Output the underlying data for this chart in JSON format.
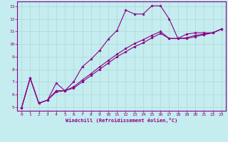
{
  "xlabel": "Windchill (Refroidissement éolien,°C)",
  "background_color": "#c5ecee",
  "grid_color": "#aad8da",
  "line_color": "#880088",
  "spine_color": "#880088",
  "xlim": [
    -0.5,
    23.5
  ],
  "ylim": [
    4.7,
    13.4
  ],
  "yticks": [
    5,
    6,
    7,
    8,
    9,
    10,
    11,
    12,
    13
  ],
  "xticks": [
    0,
    1,
    2,
    3,
    4,
    5,
    6,
    7,
    8,
    9,
    10,
    11,
    12,
    13,
    14,
    15,
    16,
    17,
    18,
    19,
    20,
    21,
    22,
    23
  ],
  "series1_x": [
    0,
    1,
    2,
    3,
    4,
    5,
    6,
    7,
    8,
    9,
    10,
    11,
    12,
    13,
    14,
    15,
    16,
    17,
    18,
    19,
    20,
    21,
    22,
    23
  ],
  "series1_y": [
    4.9,
    7.3,
    5.3,
    5.55,
    6.9,
    6.3,
    7.0,
    8.2,
    8.8,
    9.5,
    10.4,
    11.1,
    12.7,
    12.4,
    12.4,
    13.05,
    13.05,
    12.0,
    10.45,
    10.8,
    10.9,
    10.9,
    10.9,
    11.2
  ],
  "series2_x": [
    0,
    1,
    2,
    3,
    4,
    5,
    6,
    7,
    8,
    9,
    10,
    11,
    12,
    13,
    14,
    15,
    16,
    17,
    18,
    19,
    20,
    21,
    22,
    23
  ],
  "series2_y": [
    4.9,
    7.3,
    5.3,
    5.55,
    6.3,
    6.3,
    6.6,
    7.15,
    7.65,
    8.2,
    8.7,
    9.2,
    9.65,
    10.05,
    10.35,
    10.7,
    11.0,
    10.45,
    10.45,
    10.5,
    10.7,
    10.8,
    10.9,
    11.2
  ],
  "series3_x": [
    0,
    1,
    2,
    3,
    4,
    5,
    6,
    7,
    8,
    9,
    10,
    11,
    12,
    13,
    14,
    15,
    16,
    17,
    18,
    19,
    20,
    21,
    22,
    23
  ],
  "series3_y": [
    4.9,
    7.3,
    5.3,
    5.55,
    6.2,
    6.3,
    6.5,
    7.0,
    7.5,
    8.0,
    8.5,
    9.0,
    9.4,
    9.8,
    10.1,
    10.5,
    10.85,
    10.45,
    10.45,
    10.45,
    10.6,
    10.75,
    10.9,
    11.2
  ]
}
